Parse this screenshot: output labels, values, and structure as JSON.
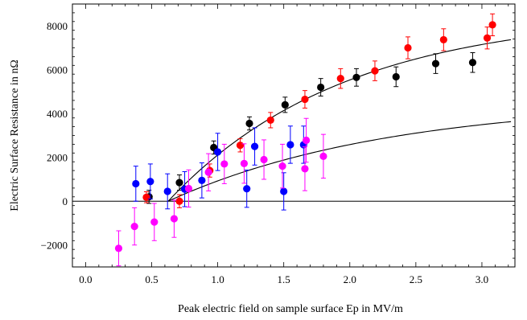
{
  "chart_data": {
    "type": "scatter",
    "title": "",
    "xlabel": "Peak electric field on sample surface Ep in MV/m",
    "ylabel": "Electric Surface Resistance in nΩ",
    "xlim": [
      -0.1,
      3.25
    ],
    "ylim": [
      -3000,
      9000
    ],
    "xticks": [
      0.0,
      0.5,
      1.0,
      1.5,
      2.0,
      2.5,
      3.0
    ],
    "xtick_labels": [
      "0.0",
      "0.5",
      "1.0",
      "1.5",
      "2.0",
      "2.5",
      "3.0"
    ],
    "yticks": [
      -2000,
      0,
      2000,
      4000,
      6000,
      8000
    ],
    "ytick_labels": [
      "−2000",
      "0",
      "2000",
      "4000",
      "6000",
      "8000"
    ],
    "grid": false,
    "colors": {
      "black": "#000000",
      "red": "#ff0000",
      "blue": "#0000ff",
      "magenta": "#ff00ff"
    },
    "series": [
      {
        "color": "#000000",
        "points": [
          {
            "x": 0.48,
            "y": 200,
            "err": 300
          },
          {
            "x": 0.71,
            "y": 850,
            "err": 350
          },
          {
            "x": 0.97,
            "y": 2450,
            "err": 300
          },
          {
            "x": 1.24,
            "y": 3550,
            "err": 300
          },
          {
            "x": 1.51,
            "y": 4400,
            "err": 350
          },
          {
            "x": 1.78,
            "y": 5200,
            "err": 400
          },
          {
            "x": 2.05,
            "y": 5650,
            "err": 400
          },
          {
            "x": 2.35,
            "y": 5680,
            "err": 450
          },
          {
            "x": 2.65,
            "y": 6280,
            "err": 450
          },
          {
            "x": 2.93,
            "y": 6330,
            "err": 450
          }
        ]
      },
      {
        "color": "#ff0000",
        "points": [
          {
            "x": 0.46,
            "y": 180,
            "err": 250
          },
          {
            "x": 0.71,
            "y": 0,
            "err": 300
          },
          {
            "x": 0.94,
            "y": 1400,
            "err": 300
          },
          {
            "x": 1.17,
            "y": 2550,
            "err": 300
          },
          {
            "x": 1.4,
            "y": 3700,
            "err": 350
          },
          {
            "x": 1.66,
            "y": 4650,
            "err": 400
          },
          {
            "x": 1.93,
            "y": 5600,
            "err": 450
          },
          {
            "x": 2.19,
            "y": 5950,
            "err": 450
          },
          {
            "x": 2.44,
            "y": 7000,
            "err": 500
          },
          {
            "x": 2.71,
            "y": 7370,
            "err": 500
          },
          {
            "x": 3.04,
            "y": 7450,
            "err": 500
          },
          {
            "x": 3.08,
            "y": 8050,
            "err": 500
          }
        ]
      },
      {
        "color": "#0000ff",
        "points": [
          {
            "x": 0.38,
            "y": 800,
            "err": 800
          },
          {
            "x": 0.49,
            "y": 900,
            "err": 800
          },
          {
            "x": 0.62,
            "y": 450,
            "err": 800
          },
          {
            "x": 0.75,
            "y": 550,
            "err": 800
          },
          {
            "x": 0.88,
            "y": 950,
            "err": 800
          },
          {
            "x": 1.0,
            "y": 2250,
            "err": 850
          },
          {
            "x": 1.22,
            "y": 570,
            "err": 850
          },
          {
            "x": 1.28,
            "y": 2500,
            "err": 850
          },
          {
            "x": 1.5,
            "y": 450,
            "err": 850
          },
          {
            "x": 1.55,
            "y": 2580,
            "err": 850
          },
          {
            "x": 1.65,
            "y": 2580,
            "err": 850
          }
        ]
      },
      {
        "color": "#ff00ff",
        "points": [
          {
            "x": 0.25,
            "y": -2150,
            "err": 800
          },
          {
            "x": 0.37,
            "y": -1150,
            "err": 850
          },
          {
            "x": 0.52,
            "y": -950,
            "err": 850
          },
          {
            "x": 0.67,
            "y": -800,
            "err": 850
          },
          {
            "x": 0.78,
            "y": 580,
            "err": 850
          },
          {
            "x": 0.93,
            "y": 1320,
            "err": 850
          },
          {
            "x": 1.05,
            "y": 1700,
            "err": 900
          },
          {
            "x": 1.2,
            "y": 1720,
            "err": 900
          },
          {
            "x": 1.35,
            "y": 1900,
            "err": 900
          },
          {
            "x": 1.49,
            "y": 1600,
            "err": 1000
          },
          {
            "x": 1.66,
            "y": 1480,
            "err": 1000
          },
          {
            "x": 1.67,
            "y": 2780,
            "err": 1000
          },
          {
            "x": 1.8,
            "y": 2050,
            "err": 1000
          }
        ]
      }
    ],
    "curves": [
      {
        "color": "#000000",
        "x0": 0.625,
        "a": 8600,
        "k": 0.75,
        "x_max": 3.22
      },
      {
        "color": "#000000",
        "x0": 0.625,
        "a": 4600,
        "k": 0.6,
        "x_max": 3.22
      }
    ],
    "reference_line": {
      "y": 0,
      "x_start": -0.1,
      "x_end": 0.625
    }
  }
}
